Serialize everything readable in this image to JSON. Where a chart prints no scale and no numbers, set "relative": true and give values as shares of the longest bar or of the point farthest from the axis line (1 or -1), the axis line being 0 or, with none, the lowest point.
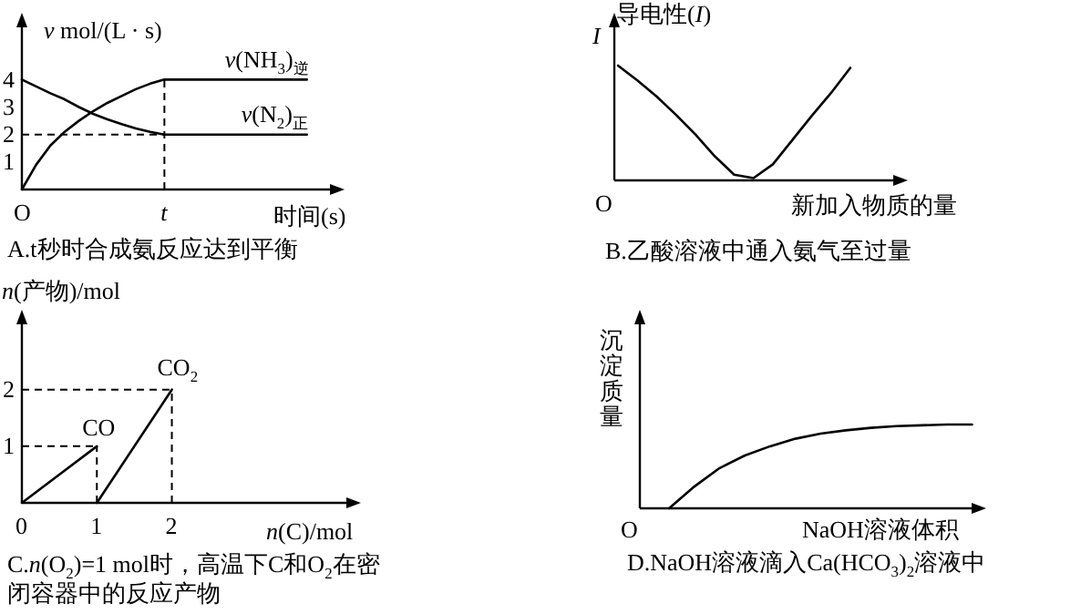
{
  "chart_data": [
    {
      "type": "line",
      "title": "A.t秒时合成氨反应达到平衡",
      "xlabel": "时间(s)",
      "ylabel": "*v* mol/(L · s)",
      "ylim": [
        0,
        6.1
      ],
      "yticks": [
        1,
        2,
        3,
        4
      ],
      "categories": [
        "O",
        null,
        null,
        null,
        null,
        null,
        null,
        null,
        null,
        null,
        "*t*",
        null,
        null,
        null,
        null,
        null,
        null,
        null,
        null,
        null,
        null
      ],
      "ref_lines": [
        {
          "axis": "y",
          "value": 2,
          "line_style": "dashed"
        },
        {
          "axis": "x",
          "value": "*t*",
          "line_style": "dashed"
        }
      ],
      "series": [
        {
          "name": "*v*(NH$_{3}$)$_{逆}$",
          "color": "#000000",
          "values": [
            0,
            0.9,
            1.6,
            2.1,
            2.5,
            2.85,
            3.15,
            3.4,
            3.65,
            3.85,
            4,
            4,
            4,
            4,
            4,
            4,
            4,
            4,
            4,
            4,
            4
          ]
        },
        {
          "name": "*v*(N$_{2}$)$_{正}$",
          "color": "#000000",
          "values": [
            4,
            3.75,
            3.5,
            3.28,
            3.0,
            2.75,
            2.55,
            2.38,
            2.22,
            2.1,
            2,
            2,
            2,
            2,
            2,
            2,
            2,
            2,
            2,
            2,
            2
          ]
        }
      ]
    },
    {
      "type": "line",
      "relative": true,
      "title": "B.乙酸溶液中通入氨气至过量",
      "xlabel": "新加入物质的量",
      "ylabel": "*I*",
      "annotations": [
        "导电性(*I*)",
        "O"
      ],
      "categories": [
        null,
        null,
        null,
        null,
        null,
        null,
        null,
        null,
        null,
        null,
        null,
        null,
        null
      ],
      "series": [
        {
          "color": "#000000",
          "values": [
            1,
            0.87,
            0.73,
            0.57,
            0.4,
            0.21,
            0.05,
            0.02,
            0.14,
            0.35,
            0.56,
            0.76,
            0.98
          ]
        }
      ]
    },
    {
      "type": "line",
      "title": "C.*n*(O$_{2}$)=1 mol时，高温下C和O$_{2}$在密闭容器中的反应产物",
      "xlabel": "*n*(C)/mol",
      "ylabel": "*n*(产物)/mol",
      "xlim": [
        0,
        4.4
      ],
      "ylim": [
        0,
        3.25
      ],
      "xticks": [
        0,
        1,
        2
      ],
      "yticks": [
        1,
        2
      ],
      "ref_lines": [
        {
          "axis": "y",
          "value": 1,
          "line_style": "dashed"
        },
        {
          "axis": "x",
          "value": 1,
          "line_style": "dashed"
        },
        {
          "axis": "y",
          "value": 2,
          "line_style": "dashed"
        },
        {
          "axis": "x",
          "value": 2,
          "line_style": "dashed"
        }
      ],
      "series": [
        {
          "name": "CO",
          "color": "#000000",
          "x": [
            0,
            1
          ],
          "values": [
            0,
            1
          ]
        },
        {
          "name": "CO$_{2}$",
          "color": "#000000",
          "x": [
            1,
            2
          ],
          "values": [
            0,
            2
          ]
        }
      ]
    },
    {
      "type": "line",
      "relative": true,
      "title": "D.NaOH溶液滴入Ca(HCO$_{3}$)$_{2}$溶液中",
      "xlabel": "NaOH溶液体积",
      "ylabel": "沉淀质量",
      "annotations": [
        "O"
      ],
      "categories": [
        null,
        null,
        null,
        null,
        null,
        null,
        null,
        null,
        null,
        null,
        null,
        null,
        null
      ],
      "series": [
        {
          "color": "#000000",
          "values": [
            0,
            0.26,
            0.48,
            0.63,
            0.74,
            0.83,
            0.89,
            0.93,
            0.96,
            0.98,
            0.99,
            1,
            1
          ]
        }
      ]
    }
  ]
}
